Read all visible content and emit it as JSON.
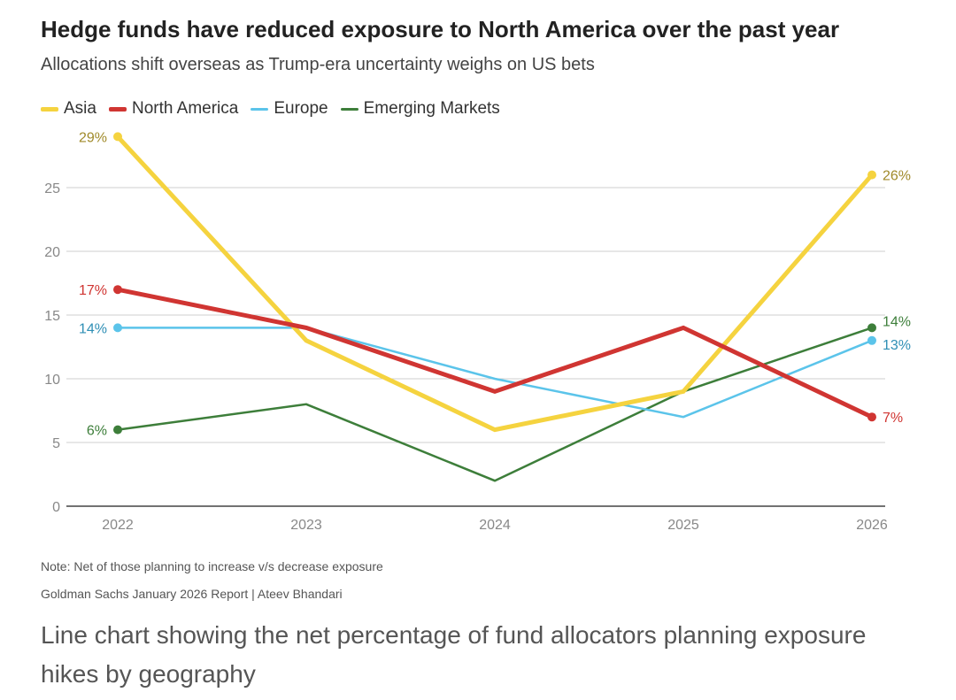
{
  "header": {
    "title": "Hedge funds have reduced exposure to North America over the past year",
    "subtitle": "Allocations shift overseas as Trump-era uncertainty weighs on US bets"
  },
  "footer": {
    "note": "Note: Net of those planning to increase v/s decrease exposure",
    "source": "Goldman Sachs January 2026 Report | Ateev Bhandari",
    "caption": "Line chart showing the net percentage of fund allocators planning exposure hikes by geography"
  },
  "chart_data": {
    "type": "line",
    "title": "Hedge funds have reduced exposure to North America over the past year",
    "subtitle": "Allocations shift overseas as Trump-era uncertainty weighs on US bets",
    "xlabel": "",
    "ylabel": "",
    "categories": [
      "2022",
      "2023",
      "2024",
      "2025",
      "2026"
    ],
    "ylim": [
      0,
      29
    ],
    "yticks": [
      0,
      5,
      10,
      15,
      20,
      25
    ],
    "grid": true,
    "legend": "top-left",
    "series": [
      {
        "name": "Asia",
        "color": "#f5d33f",
        "values": [
          29,
          13,
          6,
          9,
          26
        ],
        "labels": {
          "start": "29%",
          "end": "26%"
        },
        "label_color": "#a08a2a",
        "thick": true
      },
      {
        "name": "North America",
        "color": "#d03532",
        "values": [
          17,
          14,
          9,
          14,
          7
        ],
        "labels": {
          "start": "17%",
          "end": "7%"
        },
        "label_color": "#d03532",
        "thick": true
      },
      {
        "name": "Europe",
        "color": "#5bc4ea",
        "values": [
          14,
          14,
          10,
          7,
          13
        ],
        "labels": {
          "start": "14%",
          "end": "13%"
        },
        "label_color": "#2f8fb5",
        "thick": false
      },
      {
        "name": "Emerging Markets",
        "color": "#3d7e3a",
        "values": [
          6,
          8,
          2,
          9,
          14
        ],
        "labels": {
          "start": "6%",
          "end": "14%"
        },
        "label_color": "#3d7e3a",
        "thick": false
      }
    ]
  }
}
